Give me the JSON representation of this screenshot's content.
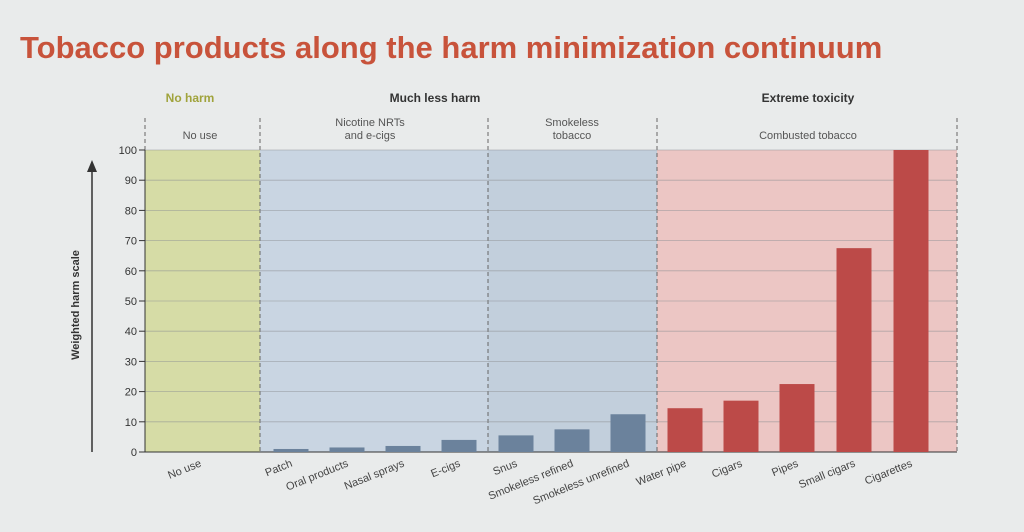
{
  "title": "Tobacco products along the harm minimization continuum",
  "zones": [
    {
      "heading": "No harm",
      "sub": [
        "No use"
      ],
      "color": "#d6dca6",
      "headColor": "#a0a33c"
    },
    {
      "heading": "Much less harm",
      "sub": [
        "Nicotine NRTs",
        "and e-cigs"
      ],
      "color": "#c9d5e2",
      "headColor": "#333333"
    },
    {
      "heading": "",
      "sub": [
        "Smokeless",
        "tobacco"
      ],
      "color": "#c2cfdc",
      "headColor": "#333333"
    },
    {
      "heading": "Extreme toxicity",
      "sub": [
        "Combusted tobacco"
      ],
      "color": "#ecc6c4",
      "headColor": "#333333"
    }
  ],
  "chart_data": {
    "type": "bar",
    "title": "Tobacco products along the harm minimization continuum",
    "xlabel": "",
    "ylabel": "Weighted harm scale",
    "ylim": [
      0,
      100
    ],
    "yticks": [
      0,
      10,
      20,
      30,
      40,
      50,
      60,
      70,
      80,
      90,
      100
    ],
    "grid": true,
    "categories": [
      "No use",
      "Patch",
      "Oral products",
      "Nasal sprays",
      "E-cigs",
      "Snus",
      "Smokeless refined",
      "Smokeless unrefined",
      "Water pipe",
      "Cigars",
      "Pipes",
      "Small cigars",
      "Cigarettes"
    ],
    "values": [
      0,
      1,
      1.5,
      2,
      4,
      5.5,
      7.5,
      12.5,
      14.5,
      17,
      22.5,
      67.5,
      100
    ],
    "bar_colors": [
      "#6b829c",
      "#6b829c",
      "#6b829c",
      "#6b829c",
      "#6b829c",
      "#6b829c",
      "#6b829c",
      "#6b829c",
      "#bc4a48",
      "#bc4a48",
      "#bc4a48",
      "#bc4a48",
      "#bc4a48"
    ]
  }
}
